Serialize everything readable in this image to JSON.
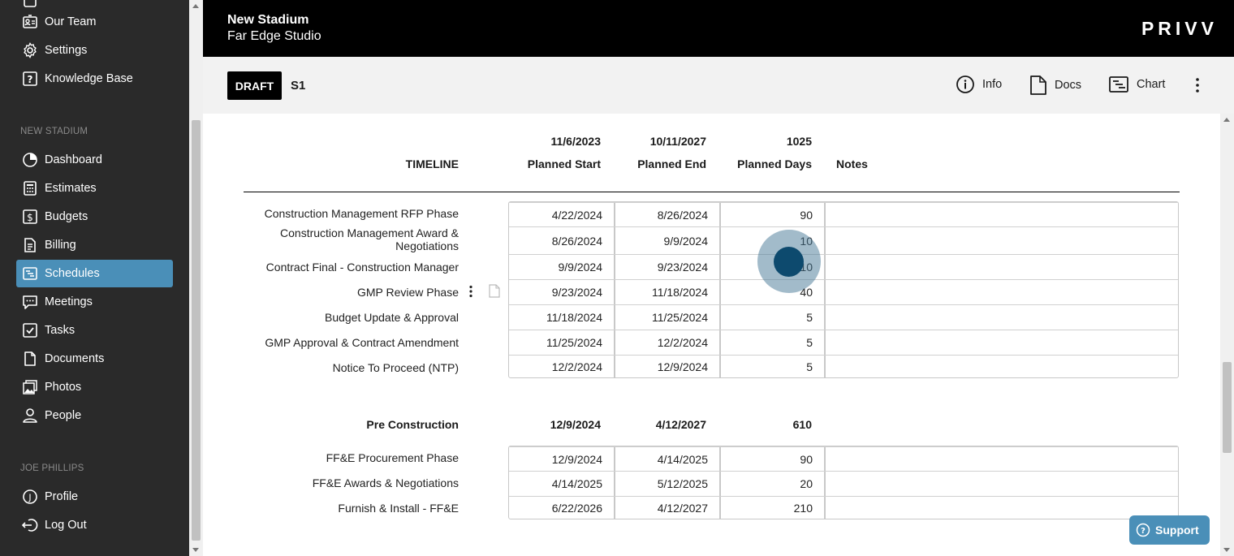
{
  "sidebar": {
    "top_items": [
      {
        "label": "Our Team",
        "icon": "id-card-icon"
      },
      {
        "label": "Settings",
        "icon": "gear-icon"
      },
      {
        "label": "Knowledge Base",
        "icon": "question-icon"
      }
    ],
    "project_section": "NEW STADIUM",
    "project_items": [
      {
        "label": "Dashboard",
        "icon": "pie-icon"
      },
      {
        "label": "Estimates",
        "icon": "calculator-icon"
      },
      {
        "label": "Budgets",
        "icon": "dollar-icon"
      },
      {
        "label": "Billing",
        "icon": "billing-icon"
      },
      {
        "label": "Schedules",
        "icon": "schedule-icon",
        "active": true
      },
      {
        "label": "Meetings",
        "icon": "chat-icon"
      },
      {
        "label": "Tasks",
        "icon": "checkbox-icon"
      },
      {
        "label": "Documents",
        "icon": "document-icon"
      },
      {
        "label": "Photos",
        "icon": "photos-icon"
      },
      {
        "label": "People",
        "icon": "person-icon"
      }
    ],
    "user_section": "JOE PHILLIPS",
    "user_items": [
      {
        "label": "Profile",
        "icon": "profile-icon"
      },
      {
        "label": "Log Out",
        "icon": "logout-icon"
      }
    ]
  },
  "header": {
    "title": "New Stadium",
    "subtitle": "Far Edge Studio",
    "logo": "PRIVV"
  },
  "toolbar": {
    "status": "DRAFT",
    "schedule_name": "S1",
    "info_label": "Info",
    "docs_label": "Docs",
    "chart_label": "Chart"
  },
  "timeline": {
    "label": "TIMELINE",
    "start": "11/6/2023",
    "end": "10/11/2027",
    "days": "1025",
    "col_start": "Planned Start",
    "col_end": "Planned End",
    "col_days": "Planned Days",
    "col_notes": "Notes"
  },
  "group1": {
    "rows": [
      {
        "task": "Construction Management RFP Phase",
        "start": "4/22/2024",
        "end": "8/26/2024",
        "days": "90"
      },
      {
        "task": "Construction Management Award & Negotiations",
        "start": "8/26/2024",
        "end": "9/9/2024",
        "days": "10"
      },
      {
        "task": "Contract Final - Construction Manager",
        "start": "9/9/2024",
        "end": "9/23/2024",
        "days": "10"
      },
      {
        "task": "GMP Review Phase",
        "start": "9/23/2024",
        "end": "11/18/2024",
        "days": "40"
      },
      {
        "task": "Budget Update & Approval",
        "start": "11/18/2024",
        "end": "11/25/2024",
        "days": "5"
      },
      {
        "task": "GMP Approval & Contract Amendment",
        "start": "11/25/2024",
        "end": "12/2/2024",
        "days": "5"
      },
      {
        "task": "Notice To Proceed (NTP)",
        "start": "12/2/2024",
        "end": "12/9/2024",
        "days": "5"
      }
    ]
  },
  "group2": {
    "label": "Pre Construction",
    "start": "12/9/2024",
    "end": "4/12/2027",
    "days": "610",
    "rows": [
      {
        "task": "FF&E Procurement Phase",
        "start": "12/9/2024",
        "end": "4/14/2025",
        "days": "90"
      },
      {
        "task": "FF&E Awards & Negotiations",
        "start": "4/14/2025",
        "end": "5/12/2025",
        "days": "20"
      },
      {
        "task": "Furnish & Install - FF&E",
        "start": "6/22/2026",
        "end": "4/12/2027",
        "days": "210"
      }
    ]
  },
  "support_label": "Support"
}
